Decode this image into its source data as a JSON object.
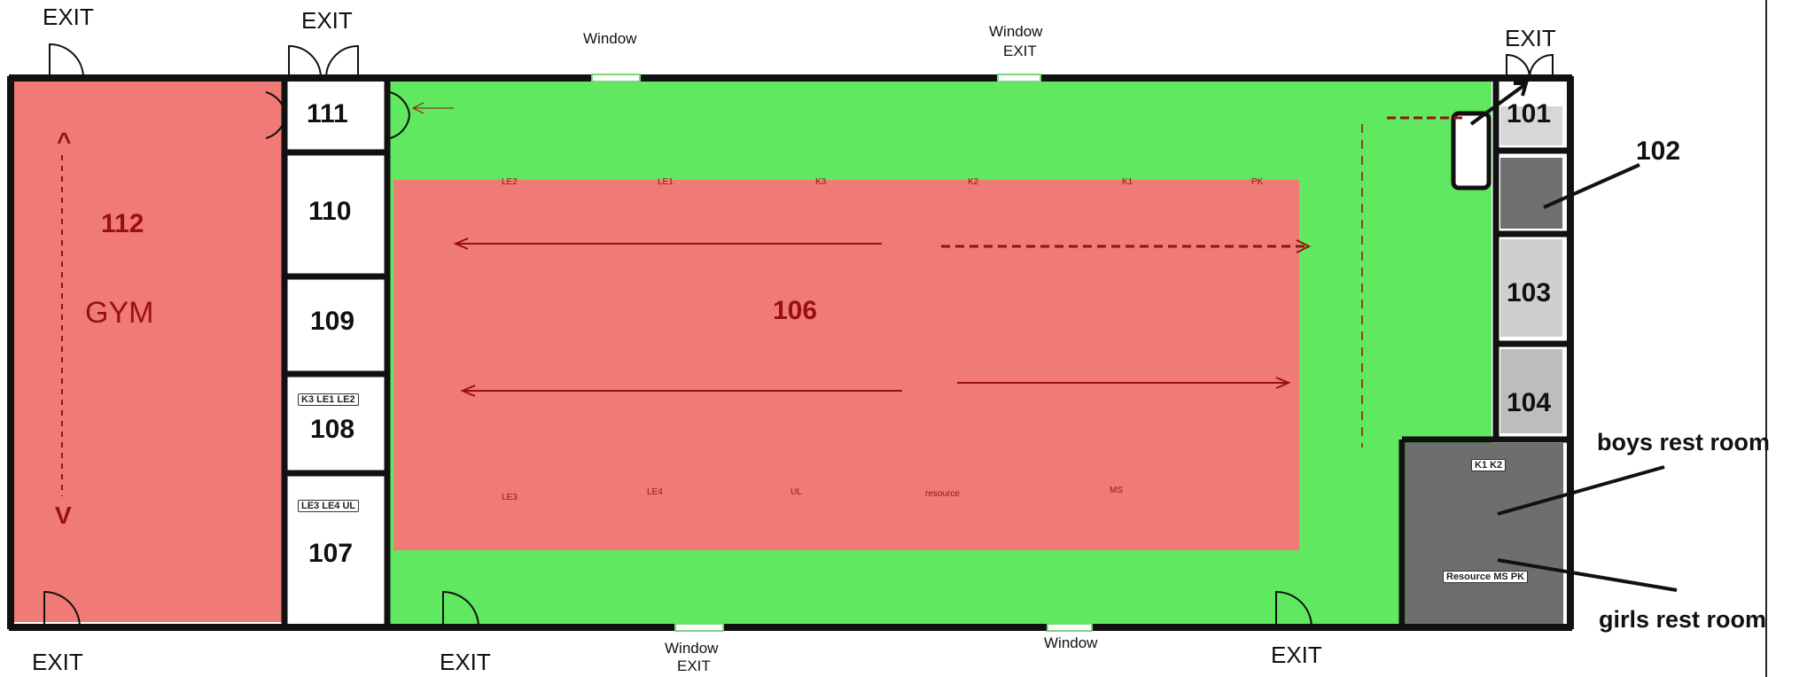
{
  "exits": {
    "top_left": "EXIT",
    "top_111": "EXIT",
    "top_right": "EXIT",
    "bottom_left": "EXIT",
    "bottom_middle": "EXIT",
    "bottom_right": "EXIT",
    "top_window_exit": "EXIT",
    "bottom_window_exit": "EXIT"
  },
  "windows": {
    "top_1": "Window",
    "top_2": "Window",
    "bottom_1": "Window",
    "bottom_2": "Window"
  },
  "rooms": {
    "r101": "101",
    "r102": "102",
    "r103": "103",
    "r104": "104",
    "r106": "106",
    "r107": "107",
    "r108": "108",
    "r109": "109",
    "r110": "110",
    "r111": "111",
    "r112": "112",
    "gym": "GYM"
  },
  "zones_top": [
    "LE2",
    "LE1",
    "K3",
    "K2",
    "K1",
    "PK"
  ],
  "zones_bottom": [
    "LE3",
    "LE4",
    "UL",
    "resource",
    "MS"
  ],
  "tags": {
    "room108": "K3 LE1 LE2",
    "room107": "LE3 LE4 UL",
    "boys": "K1 K2",
    "girls": "Resource MS PK"
  },
  "restrooms": {
    "boys": "boys rest room",
    "girls": "girls rest room"
  },
  "gym_arrows": {
    "up": "^",
    "down": "V"
  },
  "colors": {
    "green_zone": "#5fe860",
    "red_zone": "#f07a76",
    "wall": "#111111",
    "dark_room": "#6e6e6e"
  }
}
